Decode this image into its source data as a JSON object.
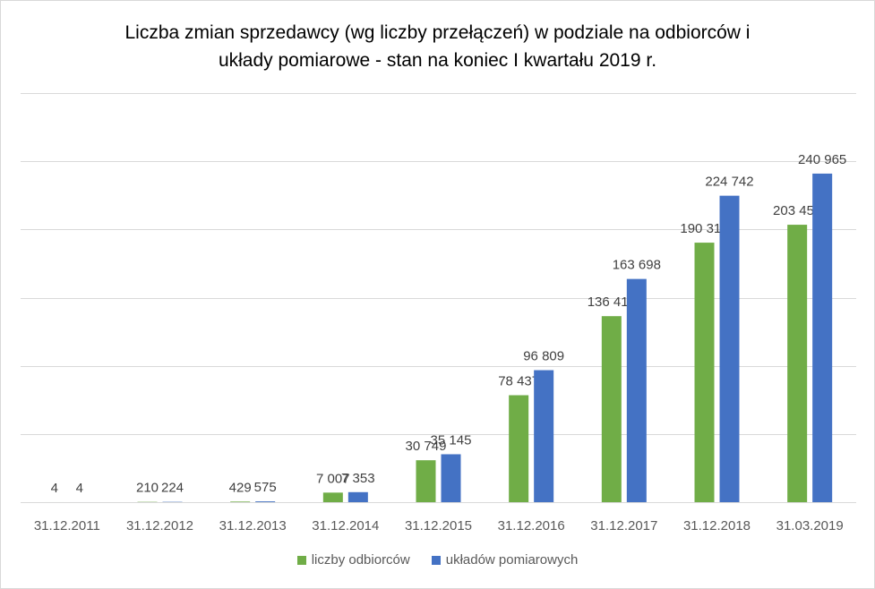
{
  "chart_data": {
    "type": "bar",
    "title_lines": [
      "Liczba zmian sprzedawcy (wg liczby przełączeń) w podziale na odbiorców i",
      "układy pomiarowe - stan na koniec I kwartału 2019 r."
    ],
    "categories": [
      "31.12.2011",
      "31.12.2012",
      "31.12.2013",
      "31.12.2014",
      "31.12.2015",
      "31.12.2016",
      "31.12.2017",
      "31.12.2018",
      "31.03.2019"
    ],
    "series": [
      {
        "name": "liczby odbiorców",
        "color": "#70ad47",
        "values": [
          4,
          210,
          429,
          7007,
          30749,
          78437,
          136419,
          190317,
          203451
        ],
        "labels": [
          "4",
          "210",
          "429",
          "7 007",
          "30 749",
          "78 437",
          "136 419",
          "190 317",
          "203 451"
        ]
      },
      {
        "name": "układów pomiarowych",
        "color": "#4472c4",
        "values": [
          4,
          224,
          575,
          7353,
          35145,
          96809,
          163698,
          224742,
          240965
        ],
        "labels": [
          "4",
          "224",
          "575",
          "7 353",
          "35 145",
          "96 809",
          "163 698",
          "224 742",
          "240 965"
        ]
      }
    ],
    "ylim": [
      0,
      300000
    ],
    "grid": true,
    "legend_position": "bottom",
    "y_axis_labels_shown": false
  }
}
